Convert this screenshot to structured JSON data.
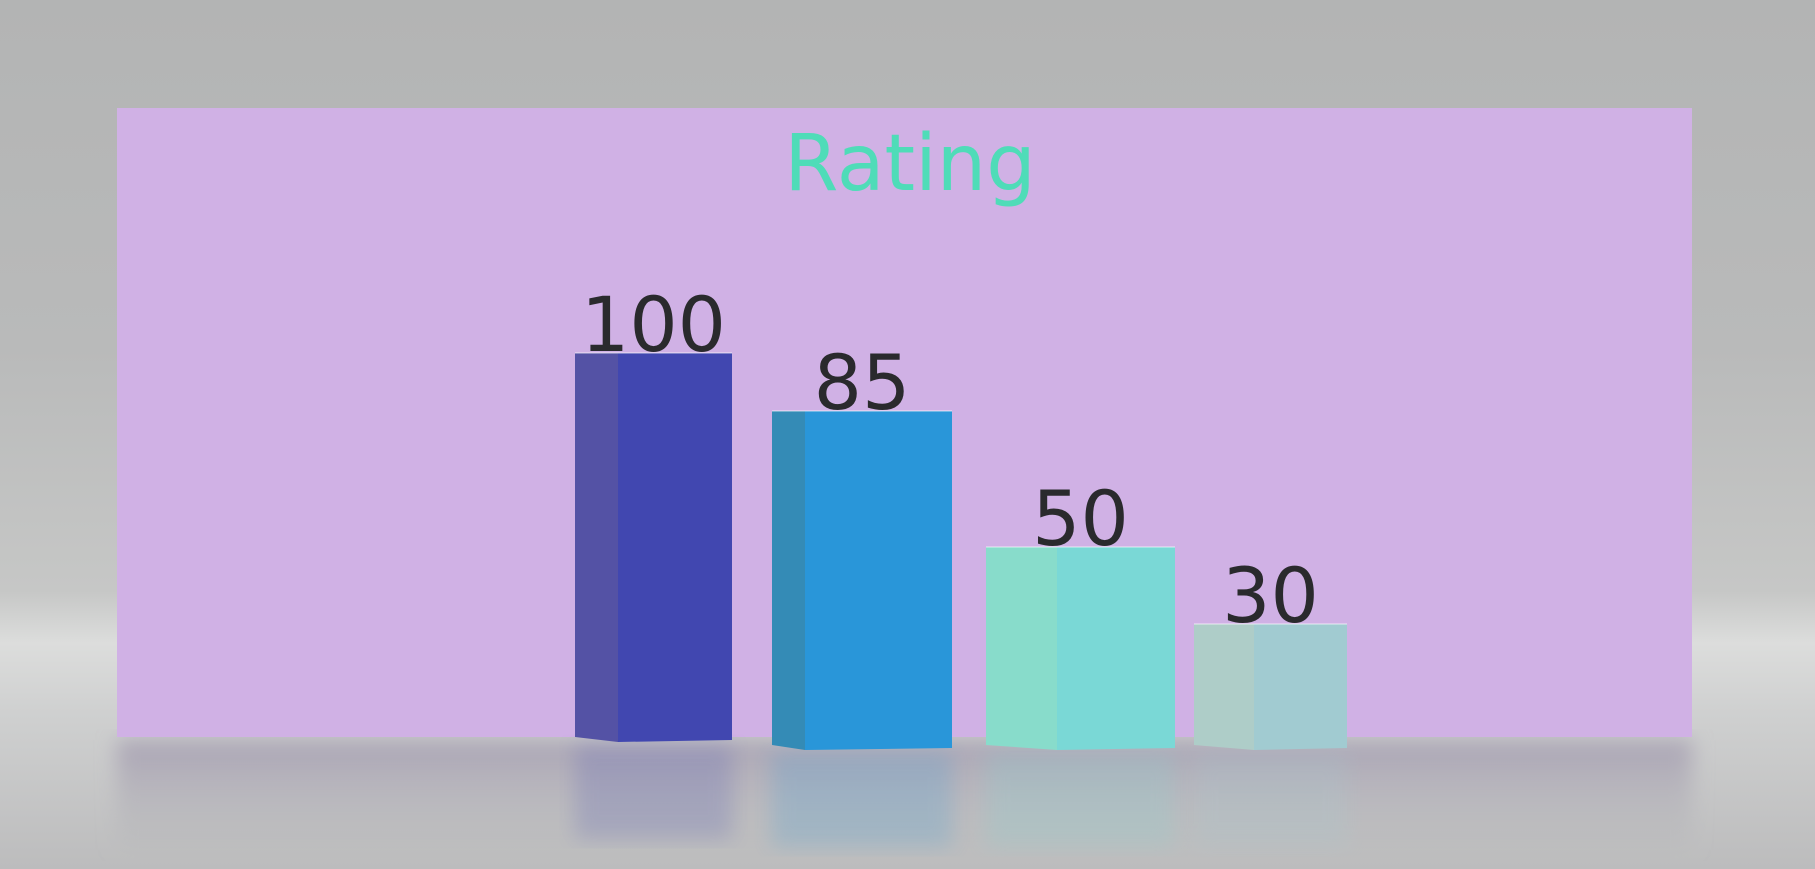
{
  "chart_data": {
    "type": "bar",
    "title": "Rating",
    "categories": [
      "",
      "",
      "",
      ""
    ],
    "values": [
      100,
      85,
      50,
      30
    ],
    "data_labels": [
      "100",
      "85",
      "50",
      "30"
    ],
    "colors": [
      "#4147b0",
      "#2996d9",
      "#7ad8d6",
      "#a1cbd1"
    ],
    "side_colors": [
      "#5452a5",
      "#348bb6",
      "#88dccb",
      "#aecdc8"
    ],
    "panel_color": "#d0b1e5",
    "ylim": [
      0,
      100
    ],
    "grid": false,
    "legend": "none",
    "style": "3d-columns"
  }
}
